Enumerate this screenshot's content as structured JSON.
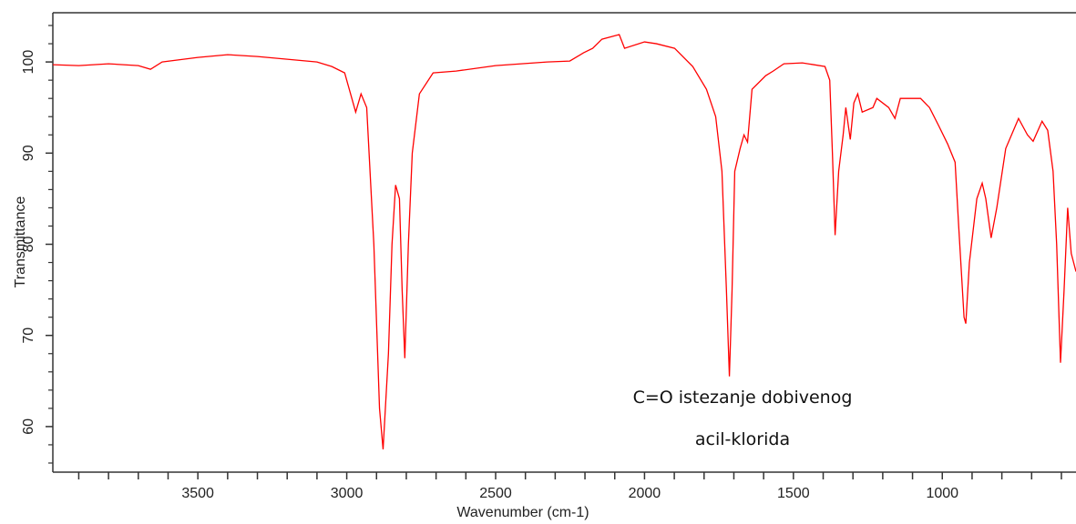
{
  "chart_data": {
    "type": "line",
    "y_label": "Transmittance",
    "x_label": "Wavenumber (cm-1)",
    "annotation": [
      "C=O istezanje dobivenog",
      "acil-klorida"
    ],
    "x": [
      3987,
      3900,
      3800,
      3700,
      3659,
      3620,
      3500,
      3400,
      3300,
      3200,
      3100,
      3050,
      3007,
      2970,
      2952,
      2933,
      2909,
      2890,
      2878,
      2860,
      2848,
      2836,
      2823,
      2814,
      2805,
      2793,
      2780,
      2756,
      2710,
      2633,
      2500,
      2327,
      2251,
      2205,
      2174,
      2143,
      2085,
      2067,
      2000,
      1960,
      1899,
      1838,
      1792,
      1761,
      1740,
      1725,
      1715,
      1706,
      1697,
      1679,
      1666,
      1654,
      1639,
      1593,
      1568,
      1532,
      1470,
      1394,
      1378,
      1369,
      1360,
      1348,
      1333,
      1324,
      1309,
      1297,
      1284,
      1269,
      1233,
      1220,
      1180,
      1159,
      1141,
      1073,
      1043,
      1012,
      982,
      957,
      945,
      927,
      921,
      909,
      884,
      866,
      854,
      836,
      817,
      787,
      744,
      714,
      695,
      665,
      646,
      628,
      616,
      603,
      591,
      579,
      567,
      551
    ],
    "series": [
      {
        "color": "#ff0000",
        "values": [
          99.7,
          99.6,
          99.8,
          99.6,
          99.2,
          100.0,
          100.5,
          100.8,
          100.6,
          100.3,
          100.0,
          99.5,
          98.8,
          94.5,
          96.5,
          95.0,
          80,
          62,
          57.5,
          68,
          80,
          86.5,
          85,
          75,
          67.5,
          80,
          90,
          96.5,
          98.8,
          99.0,
          99.6,
          100.0,
          100.1,
          101.0,
          101.5,
          102.5,
          103.0,
          101.5,
          102.2,
          102.0,
          101.5,
          99.5,
          97,
          94,
          88,
          75,
          65.5,
          75,
          88,
          90.5,
          92.0,
          91.2,
          97.0,
          98.5,
          99.0,
          99.8,
          99.9,
          99.5,
          98.0,
          90,
          81,
          88,
          92,
          95.0,
          91.5,
          95.5,
          96.5,
          94.5,
          95,
          96,
          95.0,
          93.8,
          96,
          96,
          95,
          93,
          91,
          89,
          82,
          72,
          71.3,
          78,
          85,
          86.7,
          85,
          80.7,
          84,
          90.5,
          93.8,
          92.0,
          91.3,
          93.5,
          92.5,
          88,
          80,
          67,
          75,
          84,
          79,
          77
        ]
      }
    ],
    "xlim": [
      3987,
      551
    ],
    "xticks": [
      3500,
      3000,
      2500,
      2000,
      1500,
      1000
    ],
    "xminorticks": [
      3900,
      3800,
      3700,
      3600,
      3400,
      3300,
      3200,
      3100,
      2900,
      2800,
      2700,
      2600,
      2400,
      2300,
      2200,
      2100,
      1900,
      1800,
      1700,
      1600,
      1400,
      1300,
      1200,
      1100,
      900,
      800,
      700,
      600
    ],
    "ylim": [
      55,
      105.4
    ],
    "yticks": [
      60,
      70,
      80,
      90,
      100
    ],
    "yminorticks": [
      56,
      58,
      62,
      64,
      66,
      68,
      72,
      74,
      76,
      78,
      82,
      84,
      86,
      88,
      92,
      94,
      96,
      98,
      102,
      104
    ]
  }
}
